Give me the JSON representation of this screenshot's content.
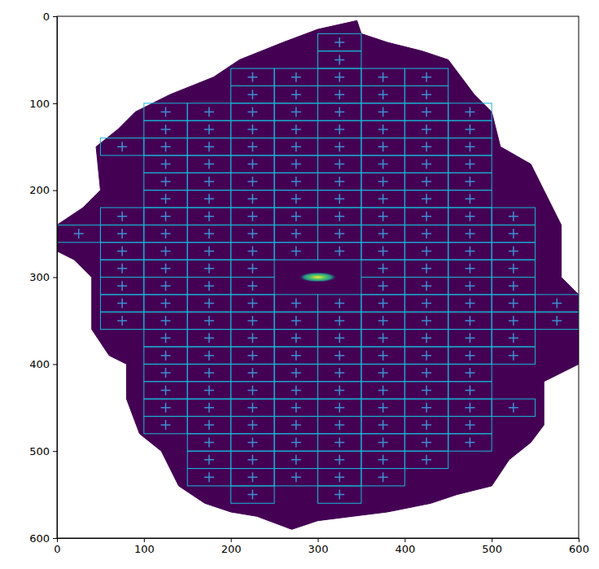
{
  "chart_data": {
    "type": "image",
    "xlim": [
      0,
      600
    ],
    "ylim": [
      600,
      0
    ],
    "xticks": [
      0,
      100,
      200,
      300,
      400,
      500,
      600
    ],
    "yticks": [
      0,
      100,
      200,
      300,
      400,
      500,
      600
    ],
    "color": "#440154",
    "footprint": {
      "x": [
        345,
        350,
        380,
        420,
        450,
        480,
        500,
        510,
        545,
        560,
        580,
        580,
        600,
        600,
        560,
        560,
        545,
        520,
        500,
        460,
        430,
        380,
        340,
        300,
        270,
        230,
        200,
        170,
        140,
        120,
        95,
        80,
        80,
        60,
        40,
        40,
        20,
        0,
        0,
        30,
        50,
        45,
        70,
        90,
        130,
        180,
        210,
        260,
        300
      ],
      "y": [
        5,
        20,
        30,
        40,
        50,
        90,
        110,
        150,
        170,
        200,
        240,
        300,
        320,
        400,
        420,
        470,
        490,
        510,
        540,
        550,
        560,
        570,
        575,
        580,
        590,
        575,
        570,
        560,
        540,
        500,
        480,
        440,
        400,
        390,
        360,
        300,
        280,
        270,
        240,
        220,
        200,
        150,
        130,
        110,
        90,
        70,
        50,
        30,
        15
      ]
    },
    "peak": {
      "x": 300,
      "y": 300
    },
    "cell_size": [
      50,
      20
    ],
    "cell_color": "#17b8d8",
    "marker": "+",
    "marker_color": "#3d8fd1",
    "cells": [
      {
        "y": 30,
        "x": [
          325
        ]
      },
      {
        "y": 50,
        "x": [
          325
        ]
      },
      {
        "y": 70,
        "x": [
          225,
          275,
          325,
          375,
          425
        ]
      },
      {
        "y": 90,
        "x": [
          225,
          275,
          325,
          375,
          425
        ]
      },
      {
        "y": 110,
        "x": [
          125,
          175,
          225,
          275,
          325,
          375,
          425,
          475
        ]
      },
      {
        "y": 130,
        "x": [
          125,
          175,
          225,
          275,
          325,
          375,
          425,
          475
        ]
      },
      {
        "y": 150,
        "x": [
          75,
          125,
          175,
          225,
          275,
          325,
          375,
          425,
          475
        ]
      },
      {
        "y": 170,
        "x": [
          125,
          175,
          225,
          275,
          325,
          375,
          425,
          475
        ]
      },
      {
        "y": 190,
        "x": [
          125,
          175,
          225,
          275,
          325,
          375,
          425,
          475
        ]
      },
      {
        "y": 210,
        "x": [
          125,
          175,
          225,
          275,
          325,
          375,
          425,
          475
        ]
      },
      {
        "y": 230,
        "x": [
          75,
          125,
          175,
          225,
          275,
          325,
          375,
          425,
          475,
          525
        ]
      },
      {
        "y": 250,
        "x": [
          25,
          75,
          125,
          175,
          225,
          275,
          325,
          375,
          425,
          475,
          525
        ]
      },
      {
        "y": 270,
        "x": [
          75,
          125,
          175,
          225,
          275,
          325,
          375,
          425,
          475,
          525
        ]
      },
      {
        "y": 290,
        "x": [
          75,
          125,
          175,
          225,
          375,
          425,
          475,
          525
        ]
      },
      {
        "y": 310,
        "x": [
          75,
          125,
          175,
          225,
          375,
          425,
          475,
          525
        ]
      },
      {
        "y": 330,
        "x": [
          75,
          125,
          175,
          225,
          275,
          325,
          375,
          425,
          475,
          525,
          575
        ]
      },
      {
        "y": 350,
        "x": [
          75,
          125,
          175,
          225,
          275,
          325,
          375,
          425,
          475,
          525,
          575
        ]
      },
      {
        "y": 370,
        "x": [
          125,
          175,
          225,
          275,
          325,
          375,
          425,
          475,
          525
        ]
      },
      {
        "y": 390,
        "x": [
          125,
          175,
          225,
          275,
          325,
          375,
          425,
          475,
          525
        ]
      },
      {
        "y": 410,
        "x": [
          125,
          175,
          225,
          275,
          325,
          375,
          425,
          475
        ]
      },
      {
        "y": 430,
        "x": [
          125,
          175,
          225,
          275,
          325,
          375,
          425,
          475
        ]
      },
      {
        "y": 450,
        "x": [
          125,
          175,
          225,
          275,
          325,
          375,
          425,
          475,
          525
        ]
      },
      {
        "y": 470,
        "x": [
          125,
          175,
          225,
          275,
          325,
          375,
          425,
          475
        ]
      },
      {
        "y": 490,
        "x": [
          175,
          225,
          275,
          325,
          375,
          425,
          475
        ]
      },
      {
        "y": 510,
        "x": [
          175,
          225,
          275,
          325,
          375,
          425
        ]
      },
      {
        "y": 530,
        "x": [
          175,
          225,
          275,
          325,
          375
        ]
      },
      {
        "y": 550,
        "x": [
          225,
          325
        ]
      }
    ]
  }
}
